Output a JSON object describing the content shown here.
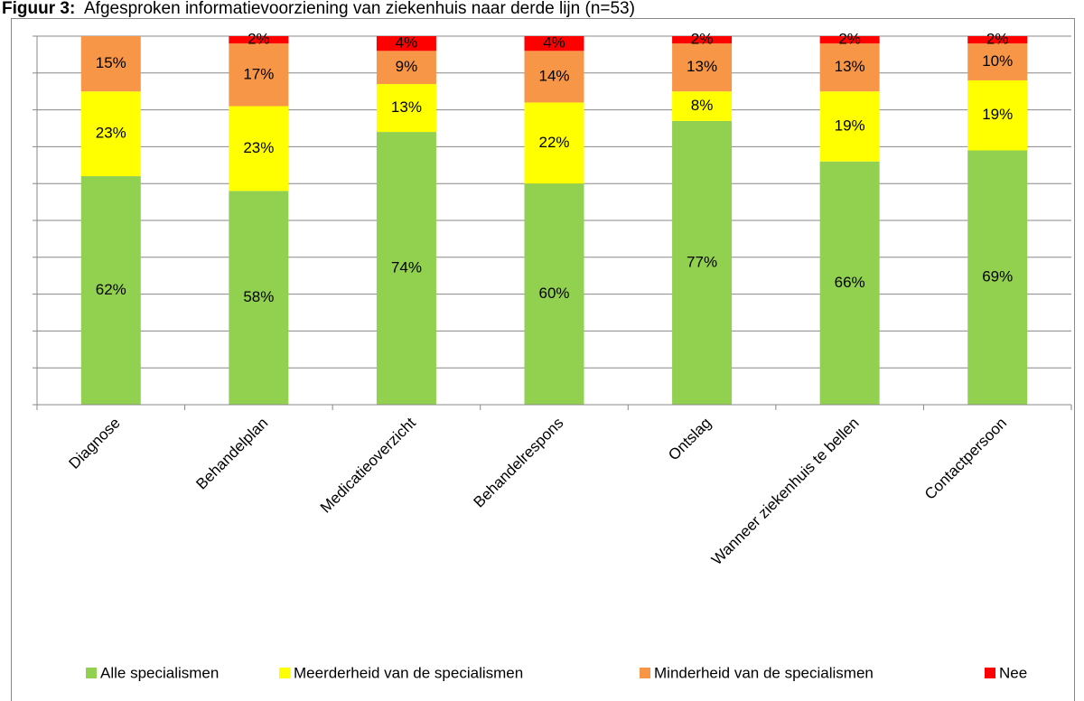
{
  "chart_data": {
    "type": "stacked_bar",
    "figure_label": "Figuur 3:",
    "title": "Afgesproken informatievoorziening van ziekenhuis naar derde lijn (n=53)",
    "categories": [
      "Diagnose",
      "Behandelplan",
      "Medicatieoverzicht",
      "Behandelrespons",
      "Ontslag",
      "Wanneer ziekenhuis te bellen",
      "Contactpersoon"
    ],
    "series": [
      {
        "name": "Alle specialismen",
        "color": "#92d050",
        "values": [
          62,
          58,
          74,
          60,
          77,
          66,
          69
        ],
        "value_labels": [
          "62%",
          "58%",
          "74%",
          "60%",
          "77%",
          "66%",
          "69%"
        ]
      },
      {
        "name": "Meerderheid van de specialismen",
        "color": "#ffff00",
        "values": [
          23,
          23,
          13,
          22,
          8,
          19,
          19
        ],
        "value_labels": [
          "23%",
          "23%",
          "13%",
          "22%",
          "8%",
          "19%",
          "19%"
        ]
      },
      {
        "name": "Minderheid van de specialismen",
        "color": "#f79646",
        "values": [
          15,
          17,
          9,
          14,
          13,
          13,
          10
        ],
        "value_labels": [
          "15%",
          "17%",
          "9%",
          "14%",
          "13%",
          "13%",
          "10%"
        ]
      },
      {
        "name": "Nee",
        "color": "#ff0000",
        "values": [
          0,
          2,
          4,
          4,
          2,
          2,
          2
        ],
        "value_labels": [
          null,
          "2%",
          "4%",
          "4%",
          "2%",
          "2%",
          "2%"
        ]
      }
    ],
    "ylim": [
      0,
      100
    ],
    "yticks": [
      0,
      10,
      20,
      30,
      40,
      50,
      60,
      70,
      80,
      90,
      100
    ],
    "grid": true,
    "legend": "bottom"
  }
}
